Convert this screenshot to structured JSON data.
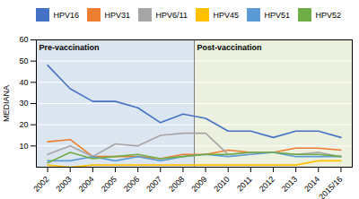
{
  "chart_data": {
    "type": "line",
    "categories": [
      "2002",
      "2003",
      "2004",
      "2005",
      "2006",
      "2007",
      "2008",
      "2009",
      "2010",
      "2011",
      "2012",
      "2013",
      "2014",
      "2015/16"
    ],
    "series": [
      {
        "name": "HPV16",
        "color": "#4472c4",
        "values": [
          48,
          37,
          31,
          31,
          28,
          21,
          25,
          23,
          17,
          17,
          14,
          17,
          17,
          14
        ]
      },
      {
        "name": "HPV31",
        "color": "#ed7d31",
        "values": [
          12,
          13,
          5,
          5,
          5,
          4,
          6,
          6,
          8,
          7,
          7,
          9,
          9,
          8
        ]
      },
      {
        "name": "HPV6/11",
        "color": "#a5a5a5",
        "values": [
          6,
          10,
          5,
          11,
          10,
          15,
          16,
          16,
          6,
          7,
          7,
          6,
          7,
          5
        ]
      },
      {
        "name": "HPV45",
        "color": "#ffc000",
        "values": [
          1,
          0,
          1,
          1,
          1,
          1,
          1,
          1,
          1,
          1,
          1,
          1,
          3,
          3
        ]
      },
      {
        "name": "HPV51",
        "color": "#5b9bd5",
        "values": [
          3,
          3,
          5,
          3,
          5,
          3,
          5,
          6,
          5,
          6,
          7,
          5,
          5,
          5
        ]
      },
      {
        "name": "HPV52",
        "color": "#70ad47",
        "values": [
          2,
          7,
          4,
          5,
          6,
          4,
          5,
          6,
          6,
          7,
          7,
          6,
          6,
          5
        ]
      }
    ],
    "ylabel": "MEDIANA",
    "ylim": [
      0,
      60
    ],
    "yticks": [
      10,
      20,
      30,
      40,
      50,
      60
    ],
    "grid": true,
    "legend": "top",
    "annotations": [
      {
        "text": "Pre-vaccination",
        "from": "2002",
        "to": "2008",
        "color": "#dce6f1"
      },
      {
        "text": "Post-vaccination",
        "from": "2009",
        "to": "2015/16",
        "color": "#ebf1de"
      }
    ]
  }
}
